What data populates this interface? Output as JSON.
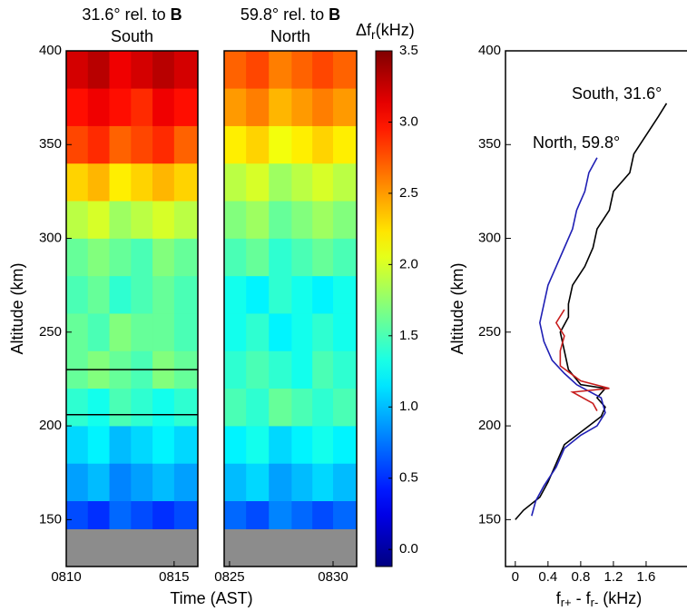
{
  "chart_data": [
    {
      "type": "heatmap",
      "title": "31.6° rel. to",
      "title_bold": "B",
      "subtitle": "South",
      "ylabel": "Altitude (km)",
      "xlabel": "Time (AST)",
      "xlim": [
        490,
        496.1
      ],
      "xticks": [
        {
          "value": 490,
          "label": "0810"
        },
        {
          "value": 495,
          "label": "0815"
        }
      ],
      "ylim": [
        125,
        400
      ],
      "yticks": [
        150,
        200,
        250,
        300,
        350,
        400
      ],
      "xbins": [
        490,
        491,
        492,
        493,
        494,
        495,
        496.1
      ],
      "ybins": [
        145,
        160,
        180,
        200,
        220,
        240,
        260,
        280,
        300,
        320,
        340,
        360,
        380,
        400
      ],
      "z": [
        [
          0.6,
          0.5,
          0.7,
          0.6,
          0.5,
          0.6
        ],
        [
          0.9,
          1.0,
          0.8,
          0.9,
          1.0,
          0.9
        ],
        [
          1.1,
          1.2,
          1.0,
          1.1,
          1.2,
          1.1
        ],
        [
          1.4,
          1.3,
          1.5,
          1.4,
          1.3,
          1.4
        ],
        [
          1.6,
          1.7,
          1.6,
          1.5,
          1.7,
          1.6
        ],
        [
          1.6,
          1.5,
          1.7,
          1.6,
          1.6,
          1.5
        ],
        [
          1.5,
          1.6,
          1.4,
          1.5,
          1.6,
          1.5
        ],
        [
          1.6,
          1.7,
          1.6,
          1.5,
          1.7,
          1.6
        ],
        [
          1.9,
          2.0,
          1.8,
          1.9,
          2.0,
          1.9
        ],
        [
          2.3,
          2.4,
          2.2,
          2.3,
          2.4,
          2.3
        ],
        [
          2.8,
          2.9,
          2.7,
          2.8,
          2.9,
          2.7
        ],
        [
          3.0,
          3.1,
          3.0,
          2.9,
          3.1,
          3.0
        ],
        [
          3.2,
          3.3,
          3.1,
          3.2,
          3.3,
          3.2
        ]
      ],
      "hlines": [
        206,
        230
      ],
      "colorbar": {
        "label": "Δf",
        "label_sub": "r",
        "label_unit": "(kHz)",
        "clim": [
          -0.12,
          3.5
        ],
        "ticks": [
          {
            "value": 0,
            "label": "0.0"
          },
          0.5,
          {
            "value": 1,
            "label": "1.0"
          },
          1.5,
          {
            "value": 2,
            "label": "2.0"
          },
          2.5,
          {
            "value": 3,
            "label": "3.0"
          },
          3.5
        ]
      }
    },
    {
      "type": "heatmap",
      "title": "59.8° rel. to",
      "title_bold": "B",
      "subtitle": "North",
      "xlim": [
        504.74,
        511.14
      ],
      "xticks": [
        {
          "value": 505,
          "label": "0825"
        },
        {
          "value": 510,
          "label": "0830"
        }
      ],
      "ylim": [
        125,
        400
      ],
      "xbins": [
        504.74,
        505.8,
        506.9,
        508,
        509,
        510,
        511.14
      ],
      "ybins": [
        145,
        160,
        180,
        200,
        220,
        240,
        260,
        280,
        300,
        320,
        340,
        360,
        380,
        400
      ],
      "z": [
        [
          0.7,
          0.6,
          0.8,
          0.7,
          0.6,
          0.7
        ],
        [
          1.0,
          1.1,
          0.9,
          1.0,
          1.1,
          1.0
        ],
        [
          1.2,
          1.3,
          1.1,
          1.2,
          1.3,
          1.2
        ],
        [
          1.5,
          1.4,
          1.6,
          1.5,
          1.4,
          1.5
        ],
        [
          1.4,
          1.5,
          1.4,
          1.3,
          1.5,
          1.4
        ],
        [
          1.3,
          1.4,
          1.2,
          1.3,
          1.4,
          1.3
        ],
        [
          1.3,
          1.2,
          1.4,
          1.3,
          1.2,
          1.3
        ],
        [
          1.5,
          1.6,
          1.4,
          1.5,
          1.6,
          1.5
        ],
        [
          1.7,
          1.8,
          1.6,
          1.7,
          1.8,
          1.7
        ],
        [
          1.9,
          2.0,
          1.8,
          1.9,
          2.0,
          1.9
        ],
        [
          2.2,
          2.3,
          2.1,
          2.2,
          2.3,
          2.2
        ],
        [
          2.5,
          2.6,
          2.4,
          2.5,
          2.6,
          2.5
        ],
        [
          2.7,
          2.8,
          2.6,
          2.7,
          2.8,
          2.7
        ]
      ]
    },
    {
      "type": "profile",
      "ylabel": "Altitude (km)",
      "xlabel_parts": [
        "f",
        "r+",
        " -  f",
        "r-",
        " (kHz)"
      ],
      "xlim": [
        -0.12,
        2.1
      ],
      "xticks": [
        0,
        0.4,
        0.8,
        1.2,
        1.6
      ],
      "ylim": [
        125,
        400
      ],
      "yticks": [
        150,
        200,
        250,
        300,
        350,
        400
      ],
      "series": [
        {
          "name": "South, 31.6°",
          "color": "#000000",
          "x": [
            0,
            0.1,
            0.3,
            0.4,
            0.5,
            0.6,
            0.75,
            0.9,
            1.05,
            1.1,
            1.0,
            1.1,
            0.8,
            0.65,
            0.6,
            0.55,
            0.65,
            0.65,
            0.7,
            0.85,
            0.95,
            1.0,
            1.15,
            1.2,
            1.4,
            1.45,
            1.6,
            1.75,
            1.85
          ],
          "y": [
            150,
            155,
            162,
            170,
            180,
            190,
            195,
            200,
            205,
            210,
            215,
            220,
            222,
            230,
            240,
            250,
            258,
            265,
            275,
            285,
            295,
            305,
            315,
            325,
            335,
            345,
            355,
            365,
            372
          ]
        },
        {
          "name": "North, 59.8°",
          "color": "#1f1fb4",
          "x": [
            0.2,
            0.25,
            0.35,
            0.5,
            0.6,
            0.8,
            1.0,
            1.1,
            1.05,
            0.75,
            0.6,
            0.45,
            0.35,
            0.3,
            0.35,
            0.4,
            0.5,
            0.6,
            0.7,
            0.75,
            0.85,
            0.9,
            1.0
          ],
          "y": [
            152,
            160,
            168,
            178,
            188,
            195,
            200,
            207,
            215,
            222,
            228,
            235,
            245,
            255,
            265,
            275,
            285,
            295,
            305,
            315,
            325,
            335,
            343
          ]
        },
        {
          "color": "#c81e1e",
          "x": [
            1.0,
            0.95,
            0.7,
            1.15,
            0.8,
            0.55,
            0.55,
            0.6,
            0.5,
            0.6
          ],
          "y": [
            208,
            212,
            218,
            220,
            224,
            232,
            240,
            248,
            255,
            262
          ]
        }
      ]
    }
  ]
}
